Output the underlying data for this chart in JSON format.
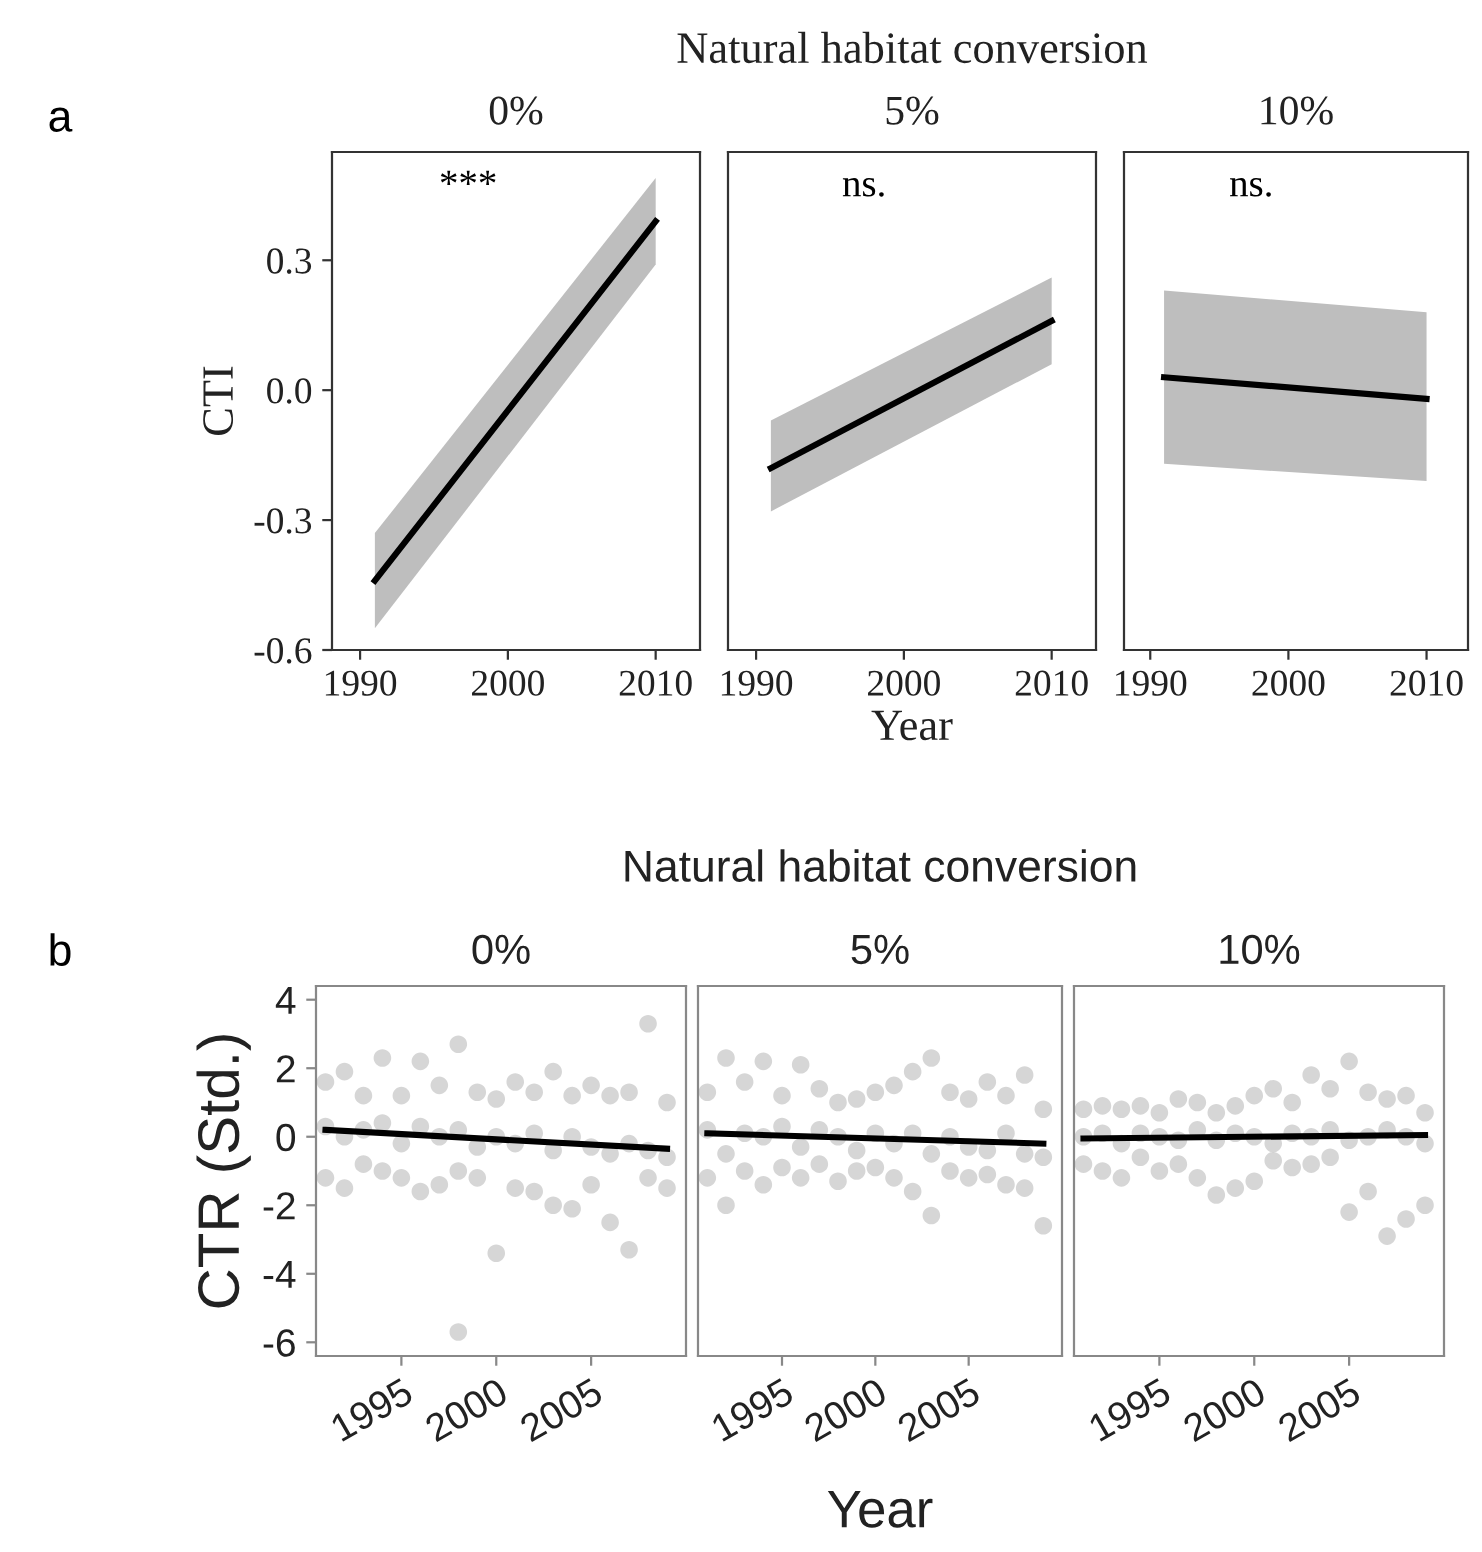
{
  "chart_data": [
    {
      "type": "line",
      "subtitle": "0%",
      "ylabel": "CTI",
      "annotations": [
        "a",
        "***"
      ],
      "xlim": [
        1988.1,
        2013
      ],
      "ylim": [
        -0.6,
        0.55
      ],
      "xticks": [
        1990,
        2000,
        2010
      ],
      "yticks": [
        -0.6,
        -0.3,
        {
          "value": 0,
          "label": "0.0"
        },
        0.3
      ],
      "grid": false,
      "series": [
        {
          "color": "#000000",
          "x": [
            1991,
            2010
          ],
          "values": [
            -0.44,
            0.39
          ],
          "lower": [
            -0.55,
            0.29
          ],
          "upper": [
            -0.33,
            0.49
          ]
        }
      ]
    },
    {
      "type": "line",
      "title": "Natural habitat conversion",
      "subtitle": "5%",
      "xlabel": "Year",
      "annotations": [
        "ns."
      ],
      "xlim": [
        1988.1,
        2013
      ],
      "ylim": [
        -0.6,
        0.55
      ],
      "xticks": [
        1990,
        2000,
        2010
      ],
      "tick_labels": "x",
      "grid": false,
      "series": [
        {
          "color": "#000000",
          "x": [
            1991,
            2010
          ],
          "values": [
            -0.18,
            0.16
          ],
          "lower": [
            -0.28,
            0.06
          ],
          "upper": [
            -0.07,
            0.26
          ]
        }
      ]
    },
    {
      "type": "line",
      "subtitle": "10%",
      "annotations": [
        "ns."
      ],
      "xlim": [
        1988.1,
        2013
      ],
      "ylim": [
        -0.6,
        0.55
      ],
      "xticks": [
        1990,
        2000,
        2010
      ],
      "tick_labels": "x",
      "grid": false,
      "series": [
        {
          "color": "#000000",
          "x": [
            1991,
            2010
          ],
          "values": [
            0.03,
            -0.02
          ],
          "lower": [
            -0.17,
            -0.21
          ],
          "upper": [
            0.23,
            0.18
          ]
        }
      ]
    },
    {
      "type": "scatter",
      "subtitle": "0%",
      "ylabel": "CTR (Std.)",
      "annotations": [
        "b"
      ],
      "xlim": [
        1990.5,
        2010
      ],
      "ylim": [
        -6.4,
        4.4
      ],
      "xticks": [
        1995,
        2000,
        2005
      ],
      "yticks": [
        -6,
        -4,
        -2,
        0,
        2,
        4
      ],
      "grid": false,
      "series": [
        {
          "marker": "circle",
          "color": "#c8c8c8",
          "x": [
            1991,
            1991,
            1991,
            1992,
            1992,
            1992,
            1993,
            1993,
            1993,
            1994,
            1994,
            1994,
            1995,
            1995,
            1995,
            1996,
            1996,
            1996,
            1997,
            1997,
            1997,
            1998,
            1998,
            1998,
            1998,
            1999,
            1999,
            1999,
            2000,
            2000,
            2000,
            2001,
            2001,
            2001,
            2002,
            2002,
            2002,
            2003,
            2003,
            2003,
            2004,
            2004,
            2004,
            2005,
            2005,
            2005,
            2006,
            2006,
            2006,
            2007,
            2007,
            2007,
            2008,
            2008,
            2008,
            2009,
            2009,
            2009
          ],
          "values": [
            -1.2,
            1.6,
            0.3,
            -1.5,
            1.9,
            0,
            -0.8,
            1.2,
            0.2,
            -1.0,
            2.3,
            0.4,
            -1.2,
            1.2,
            -0.2,
            -1.6,
            2.2,
            0.3,
            -1.4,
            1.5,
            0,
            -1.0,
            2.7,
            0.2,
            -5.7,
            -1.2,
            1.3,
            -0.3,
            -3.4,
            1.1,
            0,
            -1.5,
            1.6,
            -0.2,
            -1.6,
            1.3,
            0.1,
            -2.0,
            1.9,
            -0.4,
            -2.1,
            1.2,
            0,
            -1.4,
            1.5,
            -0.3,
            -2.5,
            1.2,
            -0.5,
            -3.3,
            1.3,
            -0.2,
            -1.2,
            3.3,
            -0.4,
            -1.5,
            1.0,
            -0.6
          ]
        },
        {
          "type": "line",
          "color": "#000000",
          "x": [
            1991,
            2009
          ],
          "values": [
            0.2,
            -0.35
          ]
        }
      ]
    },
    {
      "type": "scatter",
      "title": "Natural habitat conversion",
      "subtitle": "5%",
      "xlabel": "Year",
      "xlim": [
        1990.5,
        2010
      ],
      "ylim": [
        -6.4,
        4.4
      ],
      "xticks": [
        1995,
        2000,
        2005
      ],
      "tick_labels": "x",
      "grid": false,
      "series": [
        {
          "marker": "circle",
          "color": "#c8c8c8",
          "x": [
            1991,
            1991,
            1991,
            1992,
            1992,
            1992,
            1993,
            1993,
            1993,
            1994,
            1994,
            1994,
            1995,
            1995,
            1995,
            1996,
            1996,
            1996,
            1997,
            1997,
            1997,
            1998,
            1998,
            1998,
            1999,
            1999,
            1999,
            2000,
            2000,
            2000,
            2001,
            2001,
            2001,
            2002,
            2002,
            2002,
            2003,
            2003,
            2003,
            2004,
            2004,
            2004,
            2005,
            2005,
            2005,
            2006,
            2006,
            2006,
            2007,
            2007,
            2007,
            2008,
            2008,
            2008,
            2009,
            2009,
            2009
          ],
          "values": [
            -1.2,
            1.3,
            0.2,
            -2.0,
            2.3,
            -0.5,
            -1.0,
            1.6,
            0.1,
            -1.4,
            2.2,
            0,
            -0.9,
            1.2,
            0.3,
            -1.2,
            2.1,
            -0.3,
            -0.8,
            1.4,
            0.2,
            -1.3,
            1.0,
            0,
            -1.0,
            1.1,
            -0.4,
            -0.9,
            1.3,
            0.1,
            -1.2,
            1.5,
            -0.2,
            -1.6,
            1.9,
            0.1,
            -2.3,
            2.3,
            -0.5,
            -1.0,
            1.3,
            0,
            -1.2,
            1.1,
            -0.3,
            -1.1,
            1.6,
            -0.4,
            -1.4,
            1.2,
            0.1,
            -1.5,
            1.8,
            -0.5,
            -2.6,
            0.8,
            -0.6
          ]
        },
        {
          "type": "line",
          "color": "#000000",
          "x": [
            1991,
            2009
          ],
          "values": [
            0.1,
            -0.2
          ]
        }
      ]
    },
    {
      "type": "scatter",
      "subtitle": "10%",
      "xlim": [
        1990.5,
        2010
      ],
      "ylim": [
        -6.4,
        4.4
      ],
      "xticks": [
        1995,
        2000,
        2005
      ],
      "tick_labels": "x",
      "grid": false,
      "series": [
        {
          "marker": "circle",
          "color": "#c8c8c8",
          "x": [
            1991,
            1991,
            1991,
            1992,
            1992,
            1992,
            1993,
            1993,
            1993,
            1994,
            1994,
            1994,
            1995,
            1995,
            1995,
            1996,
            1996,
            1996,
            1997,
            1997,
            1997,
            1998,
            1998,
            1998,
            1999,
            1999,
            1999,
            2000,
            2000,
            2000,
            2001,
            2001,
            2001,
            2002,
            2002,
            2002,
            2003,
            2003,
            2003,
            2004,
            2004,
            2004,
            2005,
            2005,
            2005,
            2006,
            2006,
            2006,
            2007,
            2007,
            2007,
            2008,
            2008,
            2008,
            2009,
            2009,
            2009
          ],
          "values": [
            -0.8,
            0.8,
            0,
            -1.0,
            0.9,
            0.1,
            -1.2,
            0.8,
            -0.2,
            -0.6,
            0.9,
            0.1,
            -1.0,
            0.7,
            0,
            -0.8,
            1.1,
            -0.1,
            -1.2,
            1.0,
            0.2,
            -1.7,
            0.7,
            -0.1,
            -1.5,
            0.9,
            0.1,
            -1.3,
            1.2,
            0,
            -0.7,
            1.4,
            -0.2,
            -0.9,
            1.0,
            0.1,
            -0.8,
            1.8,
            0,
            -0.6,
            1.4,
            0.2,
            -2.2,
            2.2,
            -0.1,
            -1.6,
            1.3,
            0,
            -2.9,
            1.1,
            0.2,
            -2.4,
            1.2,
            0,
            -2.0,
            0.7,
            -0.2
          ]
        },
        {
          "type": "line",
          "color": "#000000",
          "x": [
            1991,
            2009
          ],
          "values": [
            -0.05,
            0.05
          ]
        }
      ]
    }
  ]
}
